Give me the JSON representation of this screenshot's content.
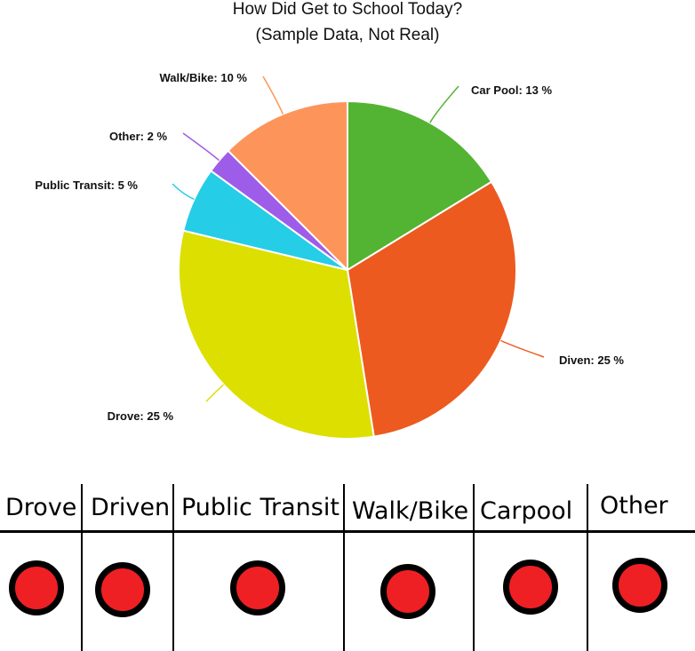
{
  "chart_data": {
    "type": "pie",
    "title": "How Did Get to School Today?",
    "subtitle": "(Sample Data, Not Real)",
    "slices": [
      {
        "name": "Car Pool",
        "value": 13,
        "label": "Car Pool: 13 %",
        "color": "#53b332"
      },
      {
        "name": "Diven",
        "value": 25,
        "label": "Diven: 25 %",
        "color": "#ec5a1f"
      },
      {
        "name": "Drove",
        "value": 25,
        "label": "Drove: 25 %",
        "color": "#dcdf00"
      },
      {
        "name": "Public Transit",
        "value": 5,
        "label": "Public Transit: 5 %",
        "color": "#25cde6"
      },
      {
        "name": "Other",
        "value": 2,
        "label": "Other: 2 %",
        "color": "#9e5de8"
      },
      {
        "name": "Walk/Bike",
        "value": 10,
        "label": "Walk/Bike: 10 %",
        "color": "#fd955a"
      }
    ],
    "start_angle_deg": 0,
    "direction": "clockwise",
    "legend": "none"
  },
  "tally": {
    "columns": [
      {
        "label": "Drove",
        "button_color": "#ee2024"
      },
      {
        "label": "Driven",
        "button_color": "#ee2024"
      },
      {
        "label": "Public Transit",
        "button_color": "#ee2024"
      },
      {
        "label": "Walk/Bike",
        "button_color": "#ee2024"
      },
      {
        "label": "Carpool",
        "button_color": "#ee2024"
      },
      {
        "label": "Other",
        "button_color": "#ee2024"
      }
    ]
  }
}
